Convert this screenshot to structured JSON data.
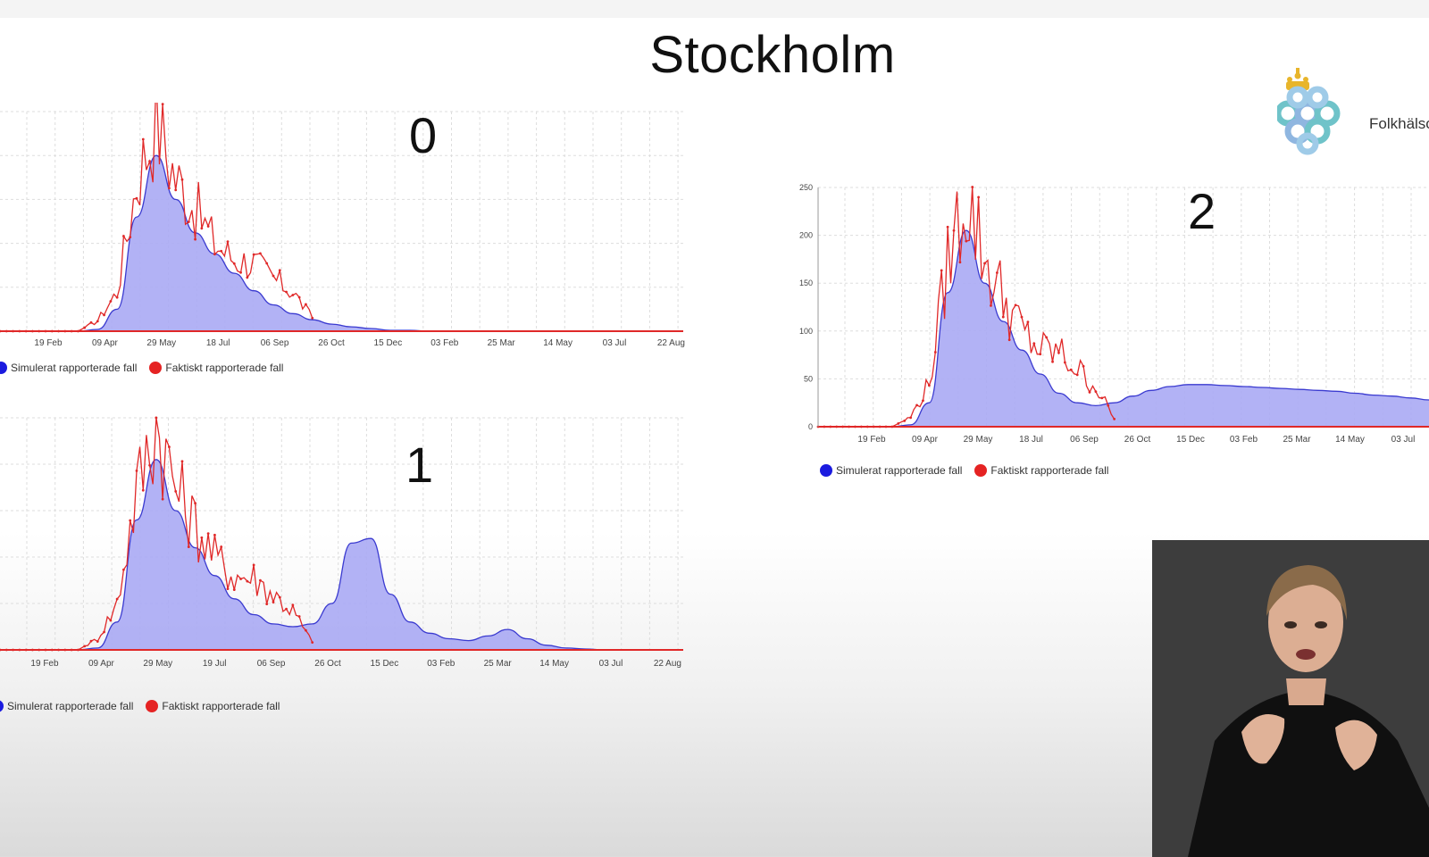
{
  "slide": {
    "title": "Stockholm"
  },
  "logo": {
    "text": "Folkhälsomyndigheten",
    "accent_color": "#6fc3c9",
    "crown_color": "#e8b52b"
  },
  "colors": {
    "simulated_fill": "#aaaaf4",
    "simulated_line": "#3a3ad0",
    "actual_line": "#e02828",
    "axis_line": "#e02828",
    "grid": "#dddddd"
  },
  "legend": {
    "simulated": "Simulerat rapporterade fall",
    "actual": "Faktiskt rapporterade fall"
  },
  "chart_data": [
    {
      "type": "area",
      "scenario_label": "0",
      "x_ticks": [
        "19 Feb",
        "09 Apr",
        "29 May",
        "18 Jul",
        "06 Sep",
        "26 Oct",
        "15 Dec",
        "03 Feb",
        "25 Mar",
        "14 May",
        "03 Jul",
        "22 Aug"
      ],
      "ylim": [
        0,
        250
      ],
      "grid": true,
      "legend_position": "bottom-left",
      "series": [
        {
          "name": "Simulerat rapporterade fall",
          "kind": "area",
          "values": [
            0,
            0,
            0,
            0,
            0,
            2,
            25,
            130,
            200,
            150,
            112,
            88,
            66,
            46,
            30,
            20,
            13,
            8,
            5,
            3,
            1,
            1,
            0,
            0,
            0,
            0,
            0,
            0,
            0,
            0,
            0,
            0,
            0,
            0,
            0,
            0
          ]
        },
        {
          "name": "Faktiskt rapporterade fall",
          "kind": "line",
          "values": [
            0,
            0,
            0,
            0,
            0,
            12,
            45,
            172,
            240,
            175,
            140,
            100,
            82,
            78,
            60,
            45,
            15
          ]
        }
      ]
    },
    {
      "type": "area",
      "scenario_label": "1",
      "x_ticks": [
        "19 Feb",
        "09 Apr",
        "29 May",
        "19 Jul",
        "06 Sep",
        "26 Oct",
        "15 Dec",
        "03 Feb",
        "25 Mar",
        "14 May",
        "03 Jul",
        "22 Aug"
      ],
      "ylim": [
        0,
        250
      ],
      "grid": true,
      "legend_position": "bottom-left",
      "series": [
        {
          "name": "Simulerat rapporterade fall",
          "kind": "area",
          "values": [
            0,
            0,
            0,
            0,
            0,
            2,
            30,
            140,
            205,
            150,
            110,
            80,
            55,
            38,
            28,
            25,
            28,
            50,
            115,
            120,
            60,
            30,
            18,
            12,
            10,
            15,
            22,
            12,
            5,
            2,
            1,
            0,
            0,
            0,
            0,
            0
          ]
        },
        {
          "name": "Faktiskt rapporterade fall",
          "kind": "line",
          "values": [
            0,
            0,
            0,
            0,
            0,
            12,
            50,
            172,
            245,
            175,
            135,
            100,
            80,
            78,
            60,
            42,
            8
          ]
        }
      ]
    },
    {
      "type": "area",
      "scenario_label": "2",
      "x_ticks": [
        "19 Feb",
        "09 Apr",
        "29 May",
        "18 Jul",
        "06 Sep",
        "26 Oct",
        "15 Dec",
        "03 Feb",
        "25 Mar",
        "14 May",
        "03 Jul"
      ],
      "y_ticks": [
        "0",
        "50",
        "100",
        "150",
        "200",
        "250"
      ],
      "ylim": [
        0,
        250
      ],
      "grid": true,
      "legend_position": "bottom-left",
      "series": [
        {
          "name": "Simulerat rapporterade fall",
          "kind": "area",
          "values": [
            0,
            0,
            0,
            0,
            0,
            2,
            25,
            140,
            205,
            150,
            110,
            80,
            55,
            35,
            25,
            22,
            25,
            32,
            38,
            42,
            44,
            44,
            43,
            42,
            41,
            40,
            39,
            38,
            37,
            35,
            33,
            32,
            30,
            28
          ]
        },
        {
          "name": "Faktiskt rapporterade fall",
          "kind": "line",
          "values": [
            0,
            0,
            0,
            0,
            0,
            10,
            45,
            172,
            245,
            175,
            135,
            100,
            80,
            78,
            60,
            42,
            8
          ]
        }
      ]
    }
  ]
}
